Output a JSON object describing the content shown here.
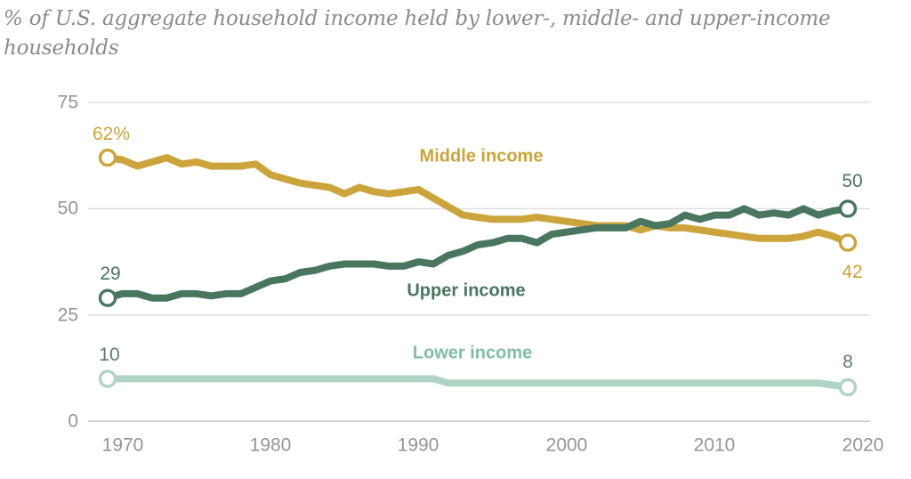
{
  "title": {
    "line1": "% of U.S. aggregate household income held by lower-, middle- and upper-income",
    "line2": "households"
  },
  "chart_data": {
    "type": "line",
    "xlabel": "",
    "ylabel": "",
    "xlim": [
      1970,
      2020
    ],
    "ylim": [
      0,
      75
    ],
    "grid": "horizontal",
    "legend_position": "inline-labels",
    "y_gridlines": [
      75,
      50,
      25,
      0
    ],
    "y_ticks": [
      "75",
      "50",
      "25",
      "0"
    ],
    "x_ticks": [
      "1970",
      "1980",
      "1990",
      "2000",
      "2010",
      "2020"
    ],
    "colors": {
      "grid": "#dbdbdb",
      "axis": "#c2c2c2",
      "tick_text": "#959595",
      "marker_fill": "#ffffff"
    },
    "x": [
      1970,
      1971,
      1972,
      1973,
      1974,
      1975,
      1976,
      1977,
      1978,
      1979,
      1980,
      1981,
      1982,
      1983,
      1984,
      1985,
      1986,
      1987,
      1988,
      1989,
      1990,
      1991,
      1992,
      1993,
      1994,
      1995,
      1996,
      1997,
      1998,
      1999,
      2000,
      2001,
      2002,
      2003,
      2004,
      2005,
      2006,
      2007,
      2008,
      2009,
      2010,
      2011,
      2012,
      2013,
      2014,
      2015,
      2016,
      2017,
      2018,
      2019,
      2020
    ],
    "series": [
      {
        "name": "Middle income",
        "color": "#cba43c",
        "name_color": "#cba43c",
        "start_label": "62%",
        "end_label": "42",
        "start_label_color": "#cba43c",
        "end_label_color": "#cba43c",
        "values": [
          62,
          61.5,
          60,
          61,
          62,
          60.5,
          61,
          60,
          60,
          60,
          60.5,
          58,
          57,
          56,
          55.5,
          55,
          53.5,
          55,
          54,
          53.5,
          54,
          54.5,
          52.5,
          50.5,
          48.5,
          48,
          47.5,
          47.5,
          47.5,
          48,
          47.5,
          47,
          46.5,
          46,
          46,
          46,
          45,
          46,
          45.5,
          45.5,
          45,
          44.5,
          44,
          43.5,
          43,
          43,
          43,
          43.5,
          44.5,
          43.5,
          42
        ]
      },
      {
        "name": "Upper income",
        "color": "#48765f",
        "name_color": "#48765f",
        "start_label": "29",
        "end_label": "50",
        "start_label_color": "#48765f",
        "end_label_color": "#48765f",
        "values": [
          29,
          30,
          30,
          29,
          29,
          30,
          30,
          29.5,
          30,
          30,
          31.5,
          33,
          33.5,
          35,
          35.5,
          36.5,
          37,
          37,
          37,
          36.5,
          36.5,
          37.5,
          37,
          39,
          40,
          41.5,
          42,
          43,
          43,
          42,
          44,
          44.5,
          45,
          45.5,
          45.5,
          45.5,
          47,
          46,
          46.5,
          48.5,
          47.5,
          48.5,
          48.5,
          50,
          48.5,
          49,
          48.5,
          50,
          48.5,
          49.5,
          50
        ]
      },
      {
        "name": "Lower income",
        "color": "#b0d4c4",
        "name_color": "#82bea4",
        "start_label": "10",
        "end_label": "8",
        "start_label_color": "#5e7d6e",
        "end_label_color": "#5e7d6e",
        "values": [
          10,
          10,
          10,
          10,
          10,
          10,
          10,
          10,
          10,
          10,
          10,
          10,
          10,
          10,
          10,
          10,
          10,
          10,
          10,
          10,
          10,
          10,
          10,
          9,
          9,
          9,
          9,
          9,
          9,
          9,
          9,
          9,
          9,
          9,
          9,
          9,
          9,
          9,
          9,
          9,
          9,
          9,
          9,
          9,
          9,
          9,
          9,
          9,
          9,
          8.5,
          8
        ]
      }
    ]
  }
}
